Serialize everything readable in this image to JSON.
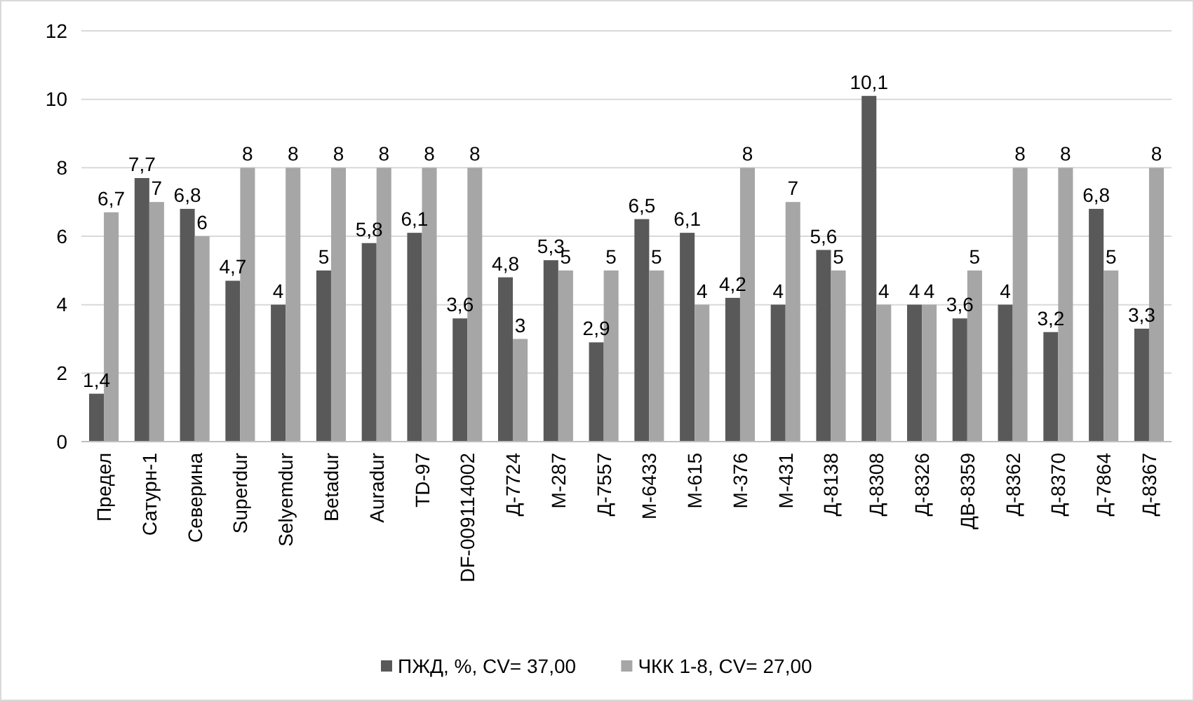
{
  "chart_data": {
    "type": "bar",
    "categories": [
      "Предел",
      "Сатурн-1",
      "Северина",
      "Superdur",
      "Selyemdur",
      "Betadur",
      "Auradur",
      "TD-97",
      "DF-009114002",
      "Д-7724",
      "М-287",
      "Д-7557",
      "М-6433",
      "М-615",
      "М-376",
      "М-431",
      "Д-8138",
      "Д-8308",
      "Д-8326",
      "ДВ-8359",
      "Д-8362",
      "Д-8370",
      "Д-7864",
      "Д-8367"
    ],
    "series": [
      {
        "name": "ПЖД, %, CV= 37,00",
        "color": "#595959",
        "values": [
          1.4,
          7.7,
          6.8,
          4.7,
          4,
          5,
          5.8,
          6.1,
          3.6,
          4.8,
          5.3,
          2.9,
          6.5,
          6.1,
          4.2,
          4,
          5.6,
          10.1,
          4,
          3.6,
          4,
          3.2,
          6.8,
          3.3
        ],
        "value_labels": [
          "1,4",
          "7,7",
          "6,8",
          "4,7",
          "4",
          "5",
          "5,8",
          "6,1",
          "3,6",
          "4,8",
          "5,3",
          "2,9",
          "6,5",
          "6,1",
          "4,2",
          "4",
          "5,6",
          "10,1",
          "4",
          "3,6",
          "4",
          "3,2",
          "6,8",
          "3,3"
        ]
      },
      {
        "name": "ЧКК 1-8, CV= 27,00",
        "color": "#a6a6a6",
        "values": [
          6.7,
          7,
          6,
          8,
          8,
          8,
          8,
          8,
          8,
          3,
          5,
          5,
          5,
          4,
          8,
          7,
          5,
          4,
          4,
          5,
          8,
          8,
          5,
          8
        ],
        "value_labels": [
          "6,7",
          "7",
          "6",
          "8",
          "8",
          "8",
          "8",
          "8",
          "8",
          "3",
          "5",
          "5",
          "5",
          "4",
          "8",
          "7",
          "5",
          "4",
          "4",
          "5",
          "8",
          "8",
          "5",
          "8"
        ]
      }
    ],
    "ylim": [
      0,
      12
    ],
    "yticks": [
      0,
      2,
      4,
      6,
      8,
      10,
      12
    ],
    "grid": "y",
    "legend": "bottom"
  }
}
